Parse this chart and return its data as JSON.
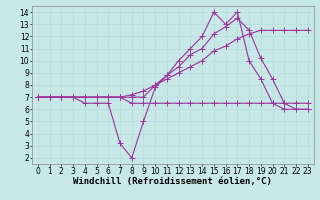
{
  "background_color": "#c8e8e8",
  "grid_color": "#b0d8d8",
  "line_color": "#993399",
  "marker": "+",
  "markersize": 4,
  "linewidth": 0.8,
  "xlabel": "Windchill (Refroidissement éolien,°C)",
  "xlabel_fontsize": 6.5,
  "tick_fontsize": 5.5,
  "xlim": [
    -0.5,
    23.5
  ],
  "ylim": [
    1.5,
    14.5
  ],
  "yticks": [
    2,
    3,
    4,
    5,
    6,
    7,
    8,
    9,
    10,
    11,
    12,
    13,
    14
  ],
  "xticks": [
    0,
    1,
    2,
    3,
    4,
    5,
    6,
    7,
    8,
    9,
    10,
    11,
    12,
    13,
    14,
    15,
    16,
    17,
    18,
    19,
    20,
    21,
    22,
    23
  ],
  "lines": [
    {
      "comment": "zigzag line - dips down then rises high",
      "x": [
        0,
        1,
        2,
        3,
        4,
        5,
        6,
        7,
        8,
        9,
        10,
        11,
        12,
        13,
        14,
        15,
        16,
        17,
        18,
        19,
        20,
        21,
        22,
        23
      ],
      "y": [
        7,
        7,
        7,
        7,
        6.5,
        6.5,
        6.5,
        3.2,
        2.0,
        5.0,
        7.8,
        8.8,
        10.0,
        11.0,
        12.0,
        14.0,
        13.0,
        14.0,
        10.0,
        8.5,
        6.5,
        6.0,
        6.0,
        6.0
      ]
    },
    {
      "comment": "straight rising line from left to right",
      "x": [
        0,
        1,
        2,
        3,
        4,
        5,
        6,
        7,
        8,
        9,
        10,
        11,
        12,
        13,
        14,
        15,
        16,
        17,
        18,
        19,
        20,
        21,
        22,
        23
      ],
      "y": [
        7,
        7,
        7,
        7,
        7,
        7,
        7,
        7,
        7.2,
        7.5,
        8.0,
        8.5,
        9.0,
        9.5,
        10.0,
        10.8,
        11.2,
        11.8,
        12.2,
        12.5,
        12.5,
        12.5,
        12.5,
        12.5
      ]
    },
    {
      "comment": "flat line near bottom",
      "x": [
        0,
        1,
        2,
        3,
        4,
        5,
        6,
        7,
        8,
        9,
        10,
        11,
        12,
        13,
        14,
        15,
        16,
        17,
        18,
        19,
        20,
        21,
        22,
        23
      ],
      "y": [
        7,
        7,
        7,
        7,
        7,
        7,
        7,
        7,
        6.5,
        6.5,
        6.5,
        6.5,
        6.5,
        6.5,
        6.5,
        6.5,
        6.5,
        6.5,
        6.5,
        6.5,
        6.5,
        6.5,
        6.5,
        6.5
      ]
    },
    {
      "comment": "line rising to peak at 15-17 then drops",
      "x": [
        0,
        1,
        2,
        3,
        4,
        5,
        6,
        7,
        8,
        9,
        10,
        11,
        12,
        13,
        14,
        15,
        16,
        17,
        18,
        19,
        20,
        21,
        22,
        23
      ],
      "y": [
        7,
        7,
        7,
        7,
        7,
        7,
        7,
        7,
        7,
        7,
        8.0,
        8.8,
        9.5,
        10.5,
        11.0,
        12.2,
        12.8,
        13.5,
        12.5,
        10.2,
        8.5,
        6.5,
        6.0,
        6.0
      ]
    }
  ]
}
